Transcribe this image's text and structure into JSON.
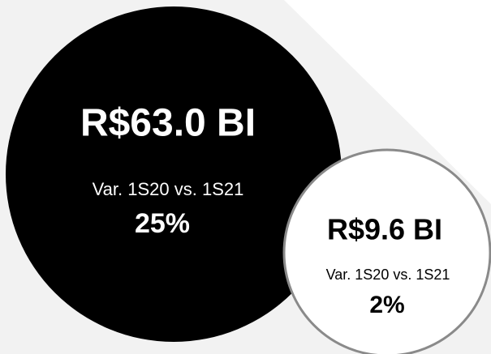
{
  "circles": [
    {
      "amount": "R$63.0 BI",
      "label": "Var. 1S20 vs. 1S21",
      "change": "25%"
    },
    {
      "amount": "R$9.6 BI",
      "label": "Var. 1S20 vs. 1S21",
      "change": "2%"
    }
  ]
}
